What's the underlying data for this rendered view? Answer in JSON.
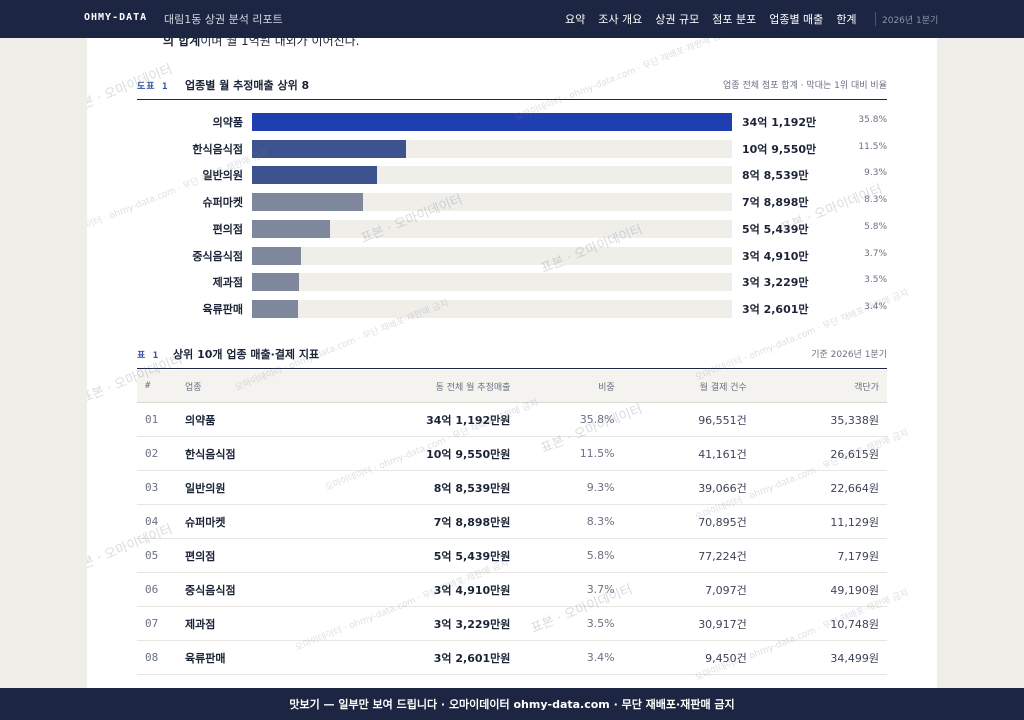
{
  "nav": {
    "brand": "OHMY-DATA",
    "title": "대림1동 상권 분석 리포트",
    "links": [
      "요약",
      "조사 개요",
      "상권 규모",
      "점포 분포",
      "업종별 매출",
      "한계"
    ],
    "period": "2026년 1분기"
  },
  "cut_text": {
    "bold": "의 합계",
    "rest": "이며 월 1억원 내외가 이어진다."
  },
  "figure": {
    "label": "도표 1",
    "title": "업종별 월 추정매출 상위 8",
    "note": "업종 전체 점포 합계 · 막대는 1위 대비 비율"
  },
  "chart_data": {
    "type": "bar",
    "orientation": "horizontal",
    "title": "업종별 월 추정매출 상위 8",
    "categories": [
      "의약품",
      "한식음식점",
      "일반의원",
      "슈퍼마켓",
      "편의점",
      "중식음식점",
      "제과점",
      "육류판매"
    ],
    "values": [
      341192,
      109550,
      88539,
      78898,
      55439,
      34910,
      33229,
      32601
    ],
    "value_unit": "만원",
    "value_labels": [
      "34억 1,192만",
      "10억 9,550만",
      "8억 8,539만",
      "7억 8,898만",
      "5억 5,439만",
      "3억 4,910만",
      "3억 3,229만",
      "3억 2,601만"
    ],
    "shares": [
      "35.8%",
      "11.5%",
      "9.3%",
      "8.3%",
      "5.8%",
      "3.7%",
      "3.5%",
      "3.4%"
    ],
    "colors": [
      "#1f3fb0",
      "#3d5390",
      "#3d5390",
      "#7e879c",
      "#7e879c",
      "#7e879c",
      "#7e879c",
      "#7e879c"
    ],
    "track_color": "#efeee9"
  },
  "table": {
    "label": "표 1",
    "title": "상위 10개 업종 매출·결제 지표",
    "note": "기준 2026년 1분기",
    "columns": [
      "#",
      "업종",
      "동 전체 월 추정매출",
      "비중",
      "월 결제 건수",
      "객단가"
    ],
    "rows": [
      {
        "rank": "01",
        "name": "의약품",
        "sales": "34억 1,192만원",
        "share": "35.8%",
        "count": "96,551건",
        "avg": "35,338원"
      },
      {
        "rank": "02",
        "name": "한식음식점",
        "sales": "10억 9,550만원",
        "share": "11.5%",
        "count": "41,161건",
        "avg": "26,615원"
      },
      {
        "rank": "03",
        "name": "일반의원",
        "sales": "8억 8,539만원",
        "share": "9.3%",
        "count": "39,066건",
        "avg": "22,664원"
      },
      {
        "rank": "04",
        "name": "슈퍼마켓",
        "sales": "7억 8,898만원",
        "share": "8.3%",
        "count": "70,895건",
        "avg": "11,129원"
      },
      {
        "rank": "05",
        "name": "편의점",
        "sales": "5억 5,439만원",
        "share": "5.8%",
        "count": "77,224건",
        "avg": "7,179원"
      },
      {
        "rank": "06",
        "name": "중식음식점",
        "sales": "3억 4,910만원",
        "share": "3.7%",
        "count": "7,097건",
        "avg": "49,190원"
      },
      {
        "rank": "07",
        "name": "제과점",
        "sales": "3억 3,229만원",
        "share": "3.5%",
        "count": "30,917건",
        "avg": "10,748원"
      },
      {
        "rank": "08",
        "name": "육류판매",
        "sales": "3억 2,601만원",
        "share": "3.4%",
        "count": "9,450건",
        "avg": "34,499원"
      }
    ]
  },
  "watermark": {
    "text_a": "표본 · 오마이데이터",
    "text_b": "오마이데이터 · ohmy-data.com · 무단 재배포·재판매 금지"
  },
  "banner": {
    "text": "맛보기 — 일부만 보여 드립니다 · 오마이데이터 ohmy-data.com · 무단 재배포·재판매 금지"
  }
}
